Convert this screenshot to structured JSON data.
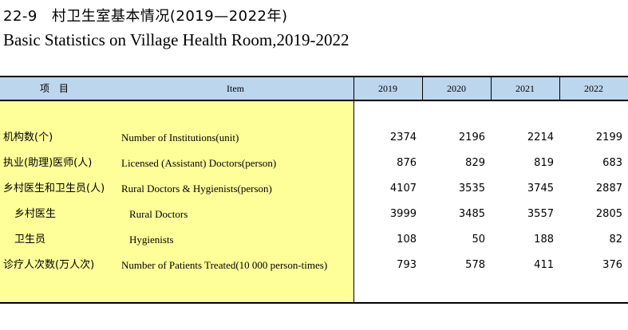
{
  "title": {
    "number": "22-9",
    "cn": "村卫生室基本情况(2019—2022年)",
    "en": "Basic Statistics on Village Health Room,2019-2022"
  },
  "header": {
    "item_cn": "项 目",
    "item_en": "Item",
    "years": [
      "2019",
      "2020",
      "2021",
      "2022"
    ]
  },
  "rows": [
    {
      "cn": "机构数(个)",
      "en": "Number of Institutions(unit)",
      "sub": false,
      "values": [
        "2374",
        "2196",
        "2214",
        "2199"
      ]
    },
    {
      "cn": "执业(助理)医师(人)",
      "en": "Licensed (Assistant) Doctors(person)",
      "sub": false,
      "values": [
        "876",
        "829",
        "819",
        "683"
      ]
    },
    {
      "cn": "乡村医生和卫生员(人)",
      "en": "Rural Doctors & Hygienists(person)",
      "sub": false,
      "values": [
        "4107",
        "3535",
        "3745",
        "2887"
      ]
    },
    {
      "cn": "乡村医生",
      "en": "Rural Doctors",
      "sub": true,
      "values": [
        "3999",
        "3485",
        "3557",
        "2805"
      ]
    },
    {
      "cn": "卫生员",
      "en": "Hygienists",
      "sub": true,
      "values": [
        "108",
        "50",
        "188",
        "82"
      ]
    },
    {
      "cn": "诊疗人次数(万人次)",
      "en": "Number of Patients Treated(10 000 person-times)",
      "sub": false,
      "values": [
        "793",
        "578",
        "411",
        "376"
      ]
    }
  ]
}
